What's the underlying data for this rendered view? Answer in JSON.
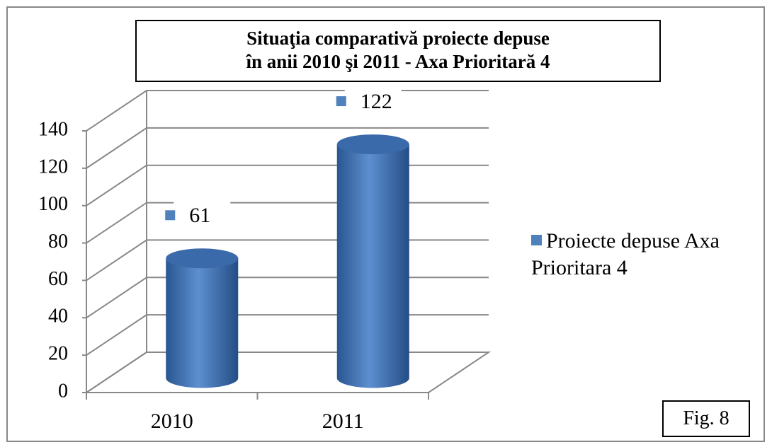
{
  "chart_data": {
    "type": "bar3d",
    "title": [
      "Situaţia  comparativă proiecte depuse",
      "în anii 2010 şi 2011 - Axa Prioritară 4"
    ],
    "categories": [
      "2010",
      "2011"
    ],
    "series": [
      {
        "name": "Proiecte depuse Axa Prioritara 4",
        "color": "#4f81bd",
        "values": [
          61,
          122
        ]
      }
    ],
    "ylim": [
      0,
      140
    ],
    "yticks": [
      0,
      20,
      40,
      60,
      80,
      100,
      120,
      140
    ],
    "grid": true,
    "annotation": "Fig. 8"
  }
}
